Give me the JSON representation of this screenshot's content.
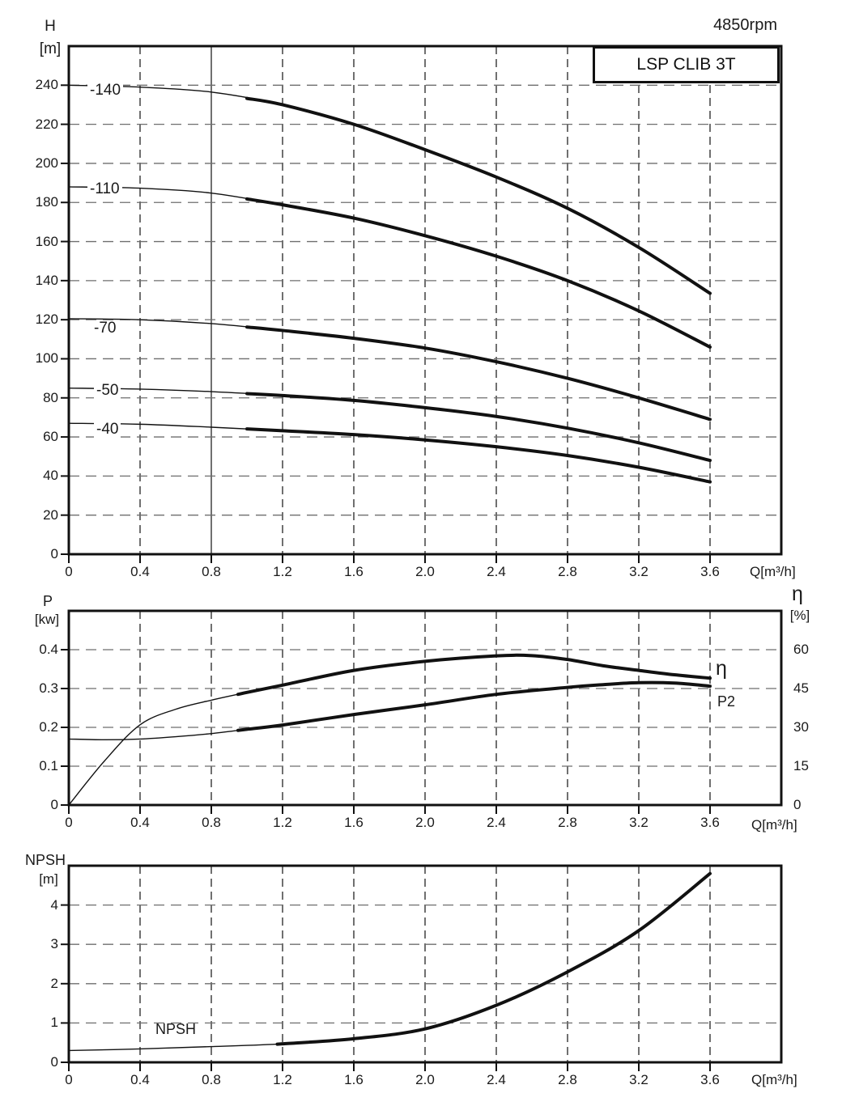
{
  "page": {
    "rpm": "4850rpm",
    "model": "LSP CLIB 3T"
  },
  "chart_data": [
    {
      "id": "head_flow",
      "type": "line",
      "title": "LSP CLIB 3T",
      "annotation": "4850rpm",
      "x_axis": {
        "label": "Q[m³/h]",
        "range": [
          0,
          4
        ],
        "tick_values": [
          0,
          0.4,
          0.8,
          1.2,
          1.6,
          2.0,
          2.4,
          2.8,
          3.2,
          3.6
        ],
        "tick_labels": [
          "0",
          "0.4",
          "0.8",
          "1.2",
          "1.6",
          "2.0",
          "2.4",
          "2.8",
          "3.2",
          "3.6"
        ],
        "solid_gridlines": [
          0.8
        ]
      },
      "y_axis": {
        "name": "H",
        "unit": "[m]",
        "range": [
          0,
          260
        ],
        "tick_values": [
          0,
          20,
          40,
          60,
          80,
          100,
          120,
          140,
          160,
          180,
          200,
          220,
          240
        ],
        "tick_labels": [
          "0",
          "20",
          "40",
          "60",
          "80",
          "100",
          "120",
          "140",
          "160",
          "180",
          "200",
          "220",
          "240"
        ]
      },
      "series": [
        {
          "name": "-140",
          "bold_from": 1.0,
          "points": [
            [
              0,
              240
            ],
            [
              0.4,
              239
            ],
            [
              0.8,
              236.5
            ],
            [
              1.2,
              230
            ],
            [
              1.6,
              220
            ],
            [
              2.0,
              207
            ],
            [
              2.4,
              193
            ],
            [
              2.8,
              177
            ],
            [
              3.2,
              157
            ],
            [
              3.6,
              133.5
            ]
          ]
        },
        {
          "name": "-110",
          "bold_from": 1.0,
          "points": [
            [
              0,
              188
            ],
            [
              0.4,
              187.3
            ],
            [
              0.8,
              184.8
            ],
            [
              1.2,
              178.8
            ],
            [
              1.6,
              172
            ],
            [
              2.0,
              163
            ],
            [
              2.4,
              152.5
            ],
            [
              2.8,
              140
            ],
            [
              3.2,
              124.5
            ],
            [
              3.6,
              106
            ]
          ]
        },
        {
          "name": "-70",
          "bold_from": 1.0,
          "points": [
            [
              0,
              120.5
            ],
            [
              0.4,
              120
            ],
            [
              0.8,
              118
            ],
            [
              1.2,
              114.5
            ],
            [
              1.6,
              110.5
            ],
            [
              2.0,
              105.5
            ],
            [
              2.4,
              98.5
            ],
            [
              2.8,
              90
            ],
            [
              3.2,
              80
            ],
            [
              3.6,
              69
            ]
          ]
        },
        {
          "name": "-50",
          "bold_from": 1.0,
          "points": [
            [
              0,
              85
            ],
            [
              0.4,
              84.5
            ],
            [
              0.8,
              83.2
            ],
            [
              1.2,
              81.2
            ],
            [
              1.6,
              78.7
            ],
            [
              2.0,
              75
            ],
            [
              2.4,
              70.5
            ],
            [
              2.8,
              64.5
            ],
            [
              3.2,
              57
            ],
            [
              3.6,
              48
            ]
          ]
        },
        {
          "name": "-40",
          "bold_from": 1.0,
          "points": [
            [
              0,
              67
            ],
            [
              0.4,
              66.5
            ],
            [
              0.8,
              65
            ],
            [
              1.2,
              63.2
            ],
            [
              1.6,
              61.2
            ],
            [
              2.0,
              58.5
            ],
            [
              2.4,
              55
            ],
            [
              2.8,
              50.5
            ],
            [
              3.2,
              44.5
            ],
            [
              3.6,
              37
            ]
          ]
        }
      ]
    },
    {
      "id": "power_efficiency_flow",
      "type": "line",
      "x_axis": {
        "label": "Q[m³/h]",
        "range": [
          0,
          4
        ],
        "tick_values": [
          0,
          0.4,
          0.8,
          1.2,
          1.6,
          2.0,
          2.4,
          2.8,
          3.2,
          3.6
        ],
        "tick_labels": [
          "0",
          "0.4",
          "0.8",
          "1.2",
          "1.6",
          "2.0",
          "2.4",
          "2.8",
          "3.2",
          "3.6"
        ],
        "solid_gridlines": []
      },
      "y_axis_left": {
        "name": "P",
        "unit": "[kw]",
        "range": [
          0,
          0.5
        ],
        "tick_values": [
          0,
          0.1,
          0.2,
          0.3,
          0.4
        ],
        "tick_labels": [
          "0",
          "0.1",
          "0.2",
          "0.3",
          "0.4"
        ]
      },
      "y_axis_right": {
        "name": "η",
        "unit": "[%]",
        "range": [
          0,
          75
        ],
        "tick_values": [
          0,
          15,
          30,
          45,
          60
        ],
        "tick_labels": [
          "0",
          "15",
          "30",
          "45",
          "60"
        ]
      },
      "series": [
        {
          "name": "η",
          "axis": "right",
          "bold_from": 0.95,
          "points": [
            [
              0,
              0
            ],
            [
              0.2,
              17
            ],
            [
              0.4,
              31
            ],
            [
              0.6,
              37
            ],
            [
              0.8,
              40.5
            ],
            [
              1.0,
              43.5
            ],
            [
              1.2,
              46.3
            ],
            [
              1.6,
              52
            ],
            [
              2.0,
              55.5
            ],
            [
              2.4,
              57.6
            ],
            [
              2.6,
              57.7
            ],
            [
              2.8,
              56.2
            ],
            [
              3.0,
              53.8
            ],
            [
              3.2,
              52
            ],
            [
              3.4,
              50.3
            ],
            [
              3.6,
              49
            ]
          ]
        },
        {
          "name": "P2",
          "axis": "left",
          "bold_from": 0.95,
          "points": [
            [
              0,
              0.17
            ],
            [
              0.2,
              0.168
            ],
            [
              0.4,
              0.17
            ],
            [
              0.6,
              0.176
            ],
            [
              0.8,
              0.184
            ],
            [
              1.0,
              0.195
            ],
            [
              1.2,
              0.206
            ],
            [
              1.6,
              0.233
            ],
            [
              2.0,
              0.258
            ],
            [
              2.4,
              0.285
            ],
            [
              2.8,
              0.303
            ],
            [
              3.0,
              0.31
            ],
            [
              3.2,
              0.315
            ],
            [
              3.4,
              0.314
            ],
            [
              3.6,
              0.306
            ]
          ]
        }
      ]
    },
    {
      "id": "npsh_flow",
      "type": "line",
      "x_axis": {
        "label": "Q[m³/h]",
        "range": [
          0,
          4
        ],
        "tick_values": [
          0,
          0.4,
          0.8,
          1.2,
          1.6,
          2.0,
          2.4,
          2.8,
          3.2,
          3.6
        ],
        "tick_labels": [
          "0",
          "0.4",
          "0.8",
          "1.2",
          "1.6",
          "2.0",
          "2.4",
          "2.8",
          "3.2",
          "3.6"
        ],
        "solid_gridlines": []
      },
      "y_axis": {
        "name": "NPSH",
        "unit": "[m]",
        "range": [
          0,
          5
        ],
        "tick_values": [
          0,
          1,
          2,
          3,
          4
        ],
        "tick_labels": [
          "0",
          "1",
          "2",
          "3",
          "4"
        ]
      },
      "series": [
        {
          "name": "NPSH",
          "bold_from": 1.2,
          "points": [
            [
              0,
              0.3
            ],
            [
              0.4,
              0.34
            ],
            [
              0.8,
              0.4
            ],
            [
              1.2,
              0.47
            ],
            [
              1.6,
              0.6
            ],
            [
              2.0,
              0.85
            ],
            [
              2.4,
              1.45
            ],
            [
              2.8,
              2.3
            ],
            [
              3.2,
              3.35
            ],
            [
              3.6,
              4.8
            ]
          ]
        }
      ]
    }
  ]
}
